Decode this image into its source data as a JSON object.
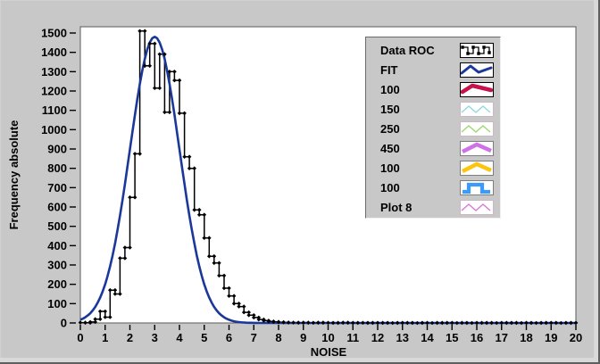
{
  "colors": {
    "panel": "#c8c8c8",
    "plot_background": "#ffffff",
    "plot_border": "#5a5a5a",
    "axis_text": "#000000",
    "histogram": "#000000",
    "fit_line": "#1a389a"
  },
  "chart_data": {
    "type": "bar",
    "subtype": "histogram-step-with-fit-curve",
    "title": "",
    "xlabel": "NOISE",
    "ylabel": "Frequency absolute",
    "xlim": [
      0,
      20
    ],
    "ylim": [
      0,
      1500
    ],
    "grid": false,
    "legend_position": "overlay-top-right",
    "x_ticks": [
      0,
      1,
      2,
      3,
      4,
      5,
      6,
      7,
      8,
      9,
      10,
      11,
      12,
      13,
      14,
      15,
      16,
      17,
      18,
      19,
      20
    ],
    "y_ticks": [
      0,
      100,
      200,
      300,
      400,
      500,
      600,
      700,
      800,
      900,
      1000,
      1100,
      1200,
      1300,
      1400,
      1500
    ],
    "series": [
      {
        "name": "Data ROC",
        "type": "step",
        "color": "#000000",
        "marker": "diamond",
        "bin_start": 0,
        "bin_step": 0.2,
        "values": [
          2,
          1,
          5,
          20,
          60,
          30,
          170,
          150,
          335,
          390,
          650,
          875,
          1510,
          1330,
          1445,
          1215,
          1390,
          1090,
          1300,
          1255,
          1085,
          860,
          800,
          585,
          560,
          440,
          345,
          310,
          245,
          180,
          140,
          100,
          85,
          55,
          40,
          28,
          18,
          12,
          8,
          6,
          4,
          3,
          2,
          2,
          1,
          2,
          1,
          1,
          2,
          1,
          1,
          0,
          1,
          2,
          1,
          0,
          1,
          1,
          0,
          1,
          0,
          1,
          0,
          0,
          1,
          0,
          1,
          0,
          0,
          1,
          0,
          0,
          1,
          0,
          1,
          0,
          0,
          1,
          0,
          0,
          1,
          0,
          1,
          0,
          0,
          1,
          0,
          1,
          0,
          0,
          1,
          0,
          0,
          1,
          0,
          1,
          0,
          0,
          1,
          0,
          1
        ]
      },
      {
        "name": "FIT",
        "type": "gaussian-curve",
        "color": "#1a389a",
        "amplitude": 1480,
        "mean": 3.0,
        "sigma": 1.0
      }
    ]
  },
  "legend": {
    "items": [
      {
        "label": "Data ROC",
        "glyph": "step-dots",
        "color": "#000000",
        "stroke": 1.3,
        "box_border": "#000000"
      },
      {
        "label": "FIT",
        "glyph": "wave2",
        "color": "#1a389a",
        "stroke": 3.0,
        "box_border": "#000000"
      },
      {
        "label": "100",
        "glyph": "bump",
        "color": "#c6134b",
        "stroke": 4.5,
        "box_border": "#000000"
      },
      {
        "label": "150",
        "glyph": "zigzag",
        "color": "#8fd8e2",
        "stroke": 1.3,
        "box_border": "#cdb6c6"
      },
      {
        "label": "250",
        "glyph": "zigzag",
        "color": "#97d96a",
        "stroke": 1.3,
        "box_border": "#cdb6c6"
      },
      {
        "label": "450",
        "glyph": "chevron",
        "color": "#cf72e8",
        "stroke": 4.5,
        "box_border": "#7e7e7e"
      },
      {
        "label": "100",
        "glyph": "chevron",
        "color": "#fdc40e",
        "stroke": 4.5,
        "box_border": "#7e7e7e"
      },
      {
        "label": "100",
        "glyph": "squarewave",
        "color": "#3a9bfc",
        "stroke": 4.2,
        "box_border": "#7e7e7e"
      },
      {
        "label": "Plot 8",
        "glyph": "zigzag",
        "color": "#d873d8",
        "stroke": 1.3,
        "box_border": "#cdb6c6"
      }
    ]
  }
}
